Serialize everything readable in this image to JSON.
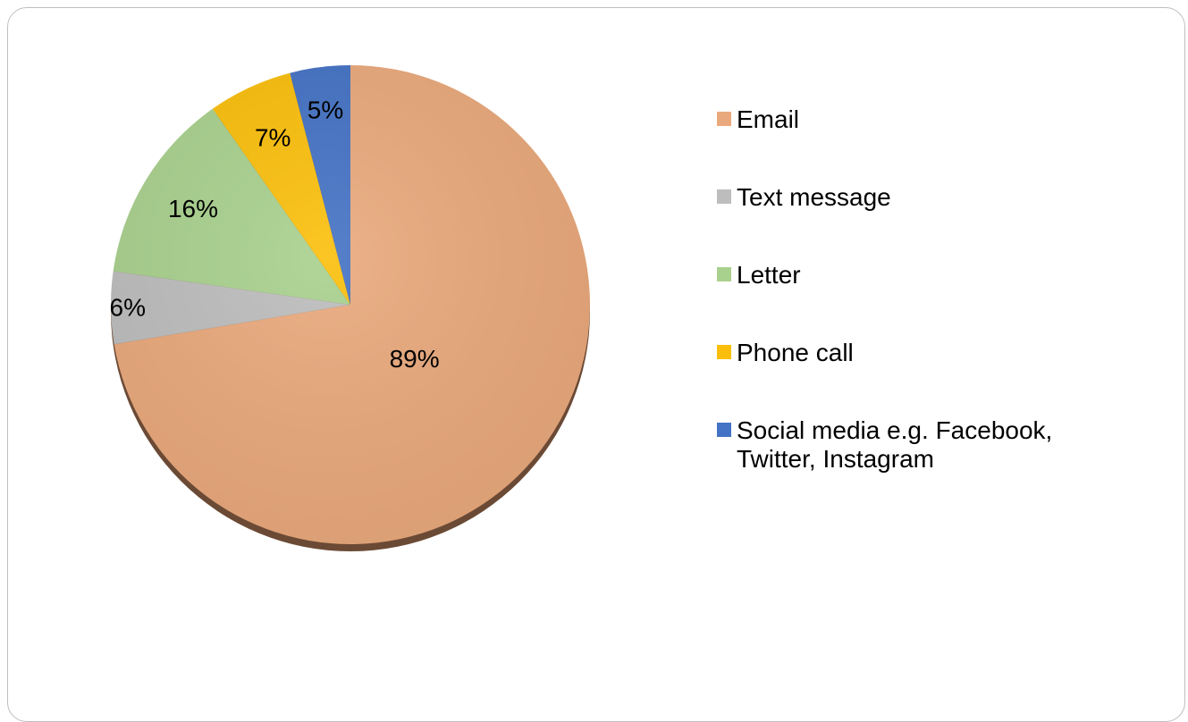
{
  "chart_data": {
    "type": "pie",
    "title": "",
    "slices": [
      {
        "label": "Email",
        "value": 89,
        "display": "89%",
        "color": "#EAA97C"
      },
      {
        "label": "Text message",
        "value": 6,
        "display": "6%",
        "color": "#BDBDBD"
      },
      {
        "label": "Letter",
        "value": 16,
        "display": "16%",
        "color": "#A9D18E"
      },
      {
        "label": "Phone call",
        "value": 7,
        "display": "7%",
        "color": "#FBBF0B"
      },
      {
        "label": "Social media e.g. Facebook, Twitter, Instagram",
        "value": 5,
        "display": "5%",
        "color": "#4472C4"
      }
    ],
    "start_angle_deg": 0,
    "direction": "clockwise",
    "legend_position": "right"
  }
}
